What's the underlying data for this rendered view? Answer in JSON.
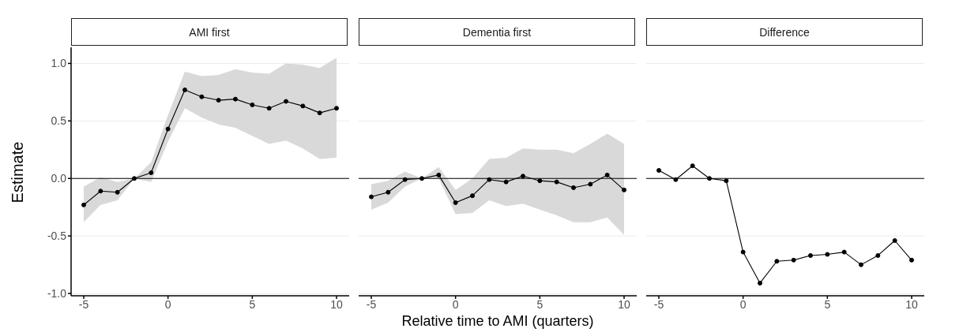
{
  "chart_data": [
    {
      "type": "line",
      "title": "AMI first",
      "ylabel": "Estimate",
      "x": [
        -5,
        -4,
        -3,
        -2,
        -1,
        0,
        1,
        2,
        3,
        4,
        5,
        6,
        7,
        8,
        9,
        10
      ],
      "xlim": [
        -5.75,
        10.75
      ],
      "xticks": [
        -5,
        0,
        5,
        10
      ],
      "ylim": [
        -1.02,
        1.14
      ],
      "yticks": [
        {
          "value": -1,
          "label": "-1.0"
        },
        -0.5,
        {
          "value": 0,
          "label": "0.0"
        },
        0.5,
        {
          "value": 1,
          "label": "1.0"
        }
      ],
      "grid": "y",
      "marker": "circle",
      "ref_lines": [
        {
          "axis": "y",
          "value": 0,
          "color": "#000000"
        }
      ],
      "series": [
        {
          "color": "#000000",
          "values": [
            -0.23,
            -0.11,
            -0.12,
            0,
            0.05,
            0.43,
            0.77,
            0.71,
            0.68,
            0.69,
            0.64,
            0.61,
            0.67,
            0.63,
            0.57,
            0.61
          ],
          "lower": [
            -0.38,
            -0.23,
            -0.19,
            0,
            -0.03,
            0.32,
            0.61,
            0.53,
            0.47,
            0.44,
            0.37,
            0.3,
            0.33,
            0.26,
            0.17,
            0.18
          ],
          "upper": [
            -0.07,
            0.01,
            -0.03,
            0,
            0.14,
            0.55,
            0.93,
            0.89,
            0.9,
            0.95,
            0.92,
            0.91,
            1.0,
            0.99,
            0.96,
            1.05
          ]
        }
      ]
    },
    {
      "type": "line",
      "title": "Dementia first",
      "xlabel": "Relative time to AMI (quarters)",
      "x": [
        -5,
        -4,
        -3,
        -2,
        -1,
        0,
        1,
        2,
        3,
        4,
        5,
        6,
        7,
        8,
        9,
        10
      ],
      "xlim": [
        -5.75,
        10.75
      ],
      "xticks": [
        -5,
        0,
        5,
        10
      ],
      "yticks": [
        -1,
        -0.5,
        0,
        0.5,
        1
      ],
      "tick_labels": "x",
      "grid": "y",
      "marker": "circle",
      "ref_lines": [
        {
          "axis": "y",
          "value": 0,
          "color": "#000000"
        }
      ],
      "series": [
        {
          "color": "#000000",
          "values": [
            -0.16,
            -0.12,
            -0.01,
            0,
            0.03,
            -0.21,
            -0.15,
            -0.01,
            -0.03,
            0.02,
            -0.02,
            -0.03,
            -0.08,
            -0.05,
            0.03,
            -0.1
          ],
          "lower": [
            -0.27,
            -0.21,
            -0.07,
            0,
            0,
            -0.31,
            -0.3,
            -0.19,
            -0.24,
            -0.22,
            -0.27,
            -0.32,
            -0.38,
            -0.38,
            -0.34,
            -0.49
          ],
          "upper": [
            -0.05,
            -0.02,
            0.06,
            0,
            0.1,
            -0.1,
            0,
            0.17,
            0.18,
            0.26,
            0.25,
            0.25,
            0.22,
            0.3,
            0.39,
            0.3
          ]
        }
      ]
    },
    {
      "type": "line",
      "title": "Difference",
      "x": [
        -5,
        -4,
        -3,
        -2,
        -1,
        0,
        1,
        2,
        3,
        4,
        5,
        6,
        7,
        8,
        9,
        10
      ],
      "xlim": [
        -5.75,
        10.75
      ],
      "xticks": [
        -5,
        0,
        5,
        10
      ],
      "yticks": [
        -1,
        -0.5,
        0,
        0.5,
        1
      ],
      "tick_labels": "x",
      "grid": "y",
      "marker": "circle",
      "ref_lines": [
        {
          "axis": "y",
          "value": 0,
          "color": "#000000"
        }
      ],
      "series": [
        {
          "color": "#000000",
          "values": [
            0.07,
            -0.01,
            0.11,
            0,
            -0.02,
            -0.64,
            -0.91,
            -0.72,
            -0.71,
            -0.67,
            -0.66,
            -0.64,
            -0.75,
            -0.67,
            -0.54,
            -0.71
          ]
        }
      ]
    }
  ]
}
